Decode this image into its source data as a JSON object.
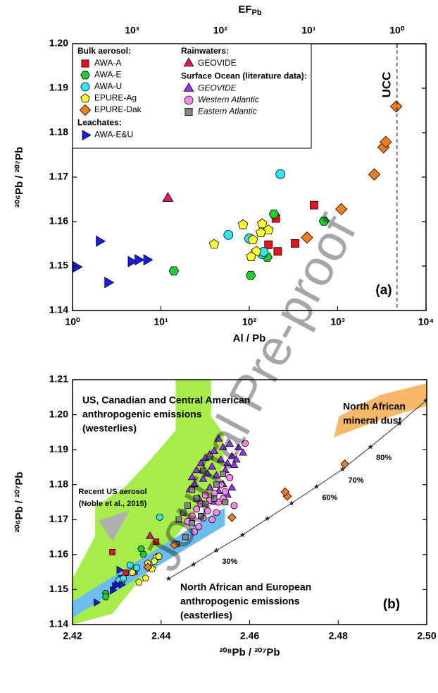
{
  "watermark": "Journal Pre-proof",
  "chart_data": [
    {
      "type": "scatter",
      "xlabel": "Al / Pb",
      "ylabel": "²⁰⁶Pb / ²⁰⁷Pb",
      "x2label": "EF",
      "x2label_subscript": "Pb",
      "xlog": true,
      "xlim": [
        1,
        10000
      ],
      "xticks": [
        {
          "value": 1,
          "label": "10⁰"
        },
        {
          "value": 10,
          "label": "10¹"
        },
        {
          "value": 100,
          "label": "10²"
        },
        {
          "value": 1000,
          "label": "10³"
        },
        {
          "value": 10000,
          "label": "10⁴"
        }
      ],
      "x2lim": [
        4700,
        0.47
      ],
      "x2ticks": [
        {
          "value": 1000,
          "label": "10³"
        },
        {
          "value": 100,
          "label": "10²"
        },
        {
          "value": 10,
          "label": "10¹"
        },
        {
          "value": 1,
          "label": "10⁰"
        }
      ],
      "ylim": [
        1.14,
        1.2
      ],
      "yticks": [
        1.14,
        1.15,
        1.16,
        1.17,
        1.18,
        1.19,
        {
          "value": 1.2,
          "label": "1.20"
        }
      ],
      "reference_line": {
        "x": 4700,
        "label": "UCC"
      },
      "panel_label": "(a)",
      "series_groups": [
        {
          "title": "Bulk aerosol:",
          "series": [
            {
              "name": "AWA-A",
              "color": "#e8141b",
              "marker": "square",
              "x": [
                165,
                200,
                210,
                330,
                540
              ],
              "values": [
                1.1548,
                1.1607,
                1.1533,
                1.1551,
                1.1637
              ]
            },
            {
              "name": "AWA-E",
              "color": "#22cc33",
              "marker": "hexagon",
              "x": [
                14,
                104,
                160,
                190,
                700
              ],
              "values": [
                1.1489,
                1.1479,
                1.152,
                1.1617,
                1.1601
              ]
            },
            {
              "name": "AWA-U",
              "color": "#33e5f0",
              "marker": "circle",
              "x": [
                58,
                100,
                140,
                145,
                225
              ],
              "values": [
                1.157,
                1.1562,
                1.1527,
                1.1532,
                1.1707
              ]
            },
            {
              "name": "EPURE-Ag",
              "color": "#ffff33",
              "marker": "pentagon",
              "x": [
                40,
                85,
                110,
                120,
                105,
                140,
                165,
                135
              ],
              "values": [
                1.1549,
                1.1593,
                1.1559,
                1.1533,
                1.1521,
                1.1595,
                1.1581,
                1.1575
              ]
            },
            {
              "name": "EPURE-Dak",
              "color": "#f07d1e",
              "marker": "diamond",
              "x": [
                450,
                1100,
                2600,
                3300,
                3500,
                4600
              ],
              "values": [
                1.1564,
                1.1628,
                1.1706,
                1.1767,
                1.1779,
                1.1859
              ]
            }
          ]
        },
        {
          "title": "Leachates:",
          "series": [
            {
              "name": "AWA-E&U",
              "color": "#1a1aee",
              "marker": "triangle-right",
              "x": [
                1.1,
                2.0,
                2.5,
                4.6,
                5.5,
                6.9
              ],
              "values": [
                1.1498,
                1.1556,
                1.1463,
                1.151,
                1.1514,
                1.1514
              ]
            }
          ]
        },
        {
          "title": "Rainwaters:",
          "series": [
            {
              "name": "GEOVIDE",
              "color": "#e8146e",
              "marker": "triangle-up",
              "x": [
                12
              ],
              "values": [
                1.1652
              ]
            }
          ]
        },
        {
          "title": "Surface Ocean (literature data):",
          "italic": true,
          "series": [
            {
              "name": "GEOVIDE",
              "color": "#9933ff",
              "marker": "triangle-up",
              "x": [],
              "values": []
            },
            {
              "name": "Western Atlantic",
              "color": "#ff88ee",
              "marker": "circle",
              "x": [],
              "values": []
            },
            {
              "name": "Eastern Atlantic",
              "color": "#888888",
              "marker": "square",
              "x": [],
              "values": []
            }
          ]
        }
      ]
    },
    {
      "type": "scatter",
      "xlabel": "²⁰⁸Pb / ²⁰⁷Pb",
      "ylabel": "²⁰⁶Pb / ²⁰⁷Pb",
      "xlim": [
        2.42,
        2.5
      ],
      "xticks": [
        2.42,
        2.44,
        2.46,
        2.48,
        {
          "value": 2.5,
          "label": "2.50"
        }
      ],
      "ylim": [
        1.14,
        1.21
      ],
      "yticks": [
        1.14,
        1.15,
        1.16,
        1.17,
        1.18,
        1.19,
        {
          "value": 1.2,
          "label": "1.20"
        },
        1.21
      ],
      "panel_label": "(b)",
      "regions": [
        {
          "label": [
            "US, Canadian and Central American",
            "anthropogenic emissions",
            "(westerlies)"
          ],
          "color": "#a6ec4a",
          "x": [
            2.42,
            2.42,
            2.4251,
            2.4251,
            2.4319,
            2.4378,
            2.4433,
            2.4433,
            2.4513,
            2.4513,
            2.4541,
            2.4541,
            2.4513,
            2.4433,
            2.4354,
            2.429,
            2.42
          ],
          "y": [
            1.1431,
            1.1531,
            1.1652,
            1.1737,
            1.1794,
            1.1874,
            1.1955,
            1.21,
            1.21,
            1.1995,
            1.1945,
            1.1854,
            1.1773,
            1.1652,
            1.1531,
            1.1431,
            1.14
          ]
        },
        {
          "label": [
            "North African and European",
            "anthropogenic emissions",
            "(easterlies)"
          ],
          "color": "#6cbcf0",
          "x": [
            2.42,
            2.42,
            2.4513,
            2.4544,
            2.4544,
            2.42
          ],
          "y": [
            1.1425,
            1.1465,
            1.1713,
            1.1733,
            1.1683,
            1.142
          ]
        },
        {
          "label": [
            "North African",
            "mineral dust"
          ],
          "color": "#f6b96a",
          "x": [
            2.479,
            2.4802,
            2.4894,
            2.5,
            2.5,
            2.4894
          ],
          "y": [
            1.1935,
            1.1995,
            1.2056,
            1.209,
            1.2025,
            1.1985
          ]
        },
        {
          "label": [
            "Recent US aerosol",
            "(Noble et al., 2015)"
          ],
          "color": "#b0b0b0",
          "x": [
            2.4259,
            2.433,
            2.429
          ],
          "y": [
            1.1697,
            1.1727,
            1.1638
          ]
        }
      ],
      "mixing_line": {
        "x": [
          2.4417,
          2.4473,
          2.4525,
          2.4584,
          2.464,
          2.4695,
          2.4751,
          2.481,
          2.4873,
          2.4938,
          2.4998
        ],
        "y": [
          1.1531,
          1.1572,
          1.1612,
          1.1656,
          1.1703,
          1.1747,
          1.1794,
          1.1844,
          1.1908,
          1.1975,
          1.204
        ],
        "labels": [
          null,
          null,
          "30%",
          null,
          null,
          null,
          "60%",
          "70%",
          "80%",
          null,
          null
        ]
      },
      "series": [
        {
          "color": "#9933ff",
          "marker": "triangle-up",
          "x": [
            2.453,
            2.4555,
            2.4575,
            2.4585,
            2.454,
            2.456,
            2.457,
            2.452,
            2.451,
            2.4535,
            2.455,
            2.4565,
            2.45,
            2.449,
            2.4515,
            2.4545,
            2.448,
            2.4505,
            2.4525,
            2.447,
            2.4495,
            2.454,
            2.456,
            2.4475,
            2.451,
            2.453,
            2.455,
            2.4465,
            2.4485,
            2.452
          ],
          "values": [
            1.193,
            1.1915,
            1.1905,
            1.189,
            1.1905,
            1.188,
            1.187,
            1.1895,
            1.1885,
            1.187,
            1.186,
            1.1855,
            1.1875,
            1.186,
            1.185,
            1.184,
            1.184,
            1.183,
            1.1825,
            1.182,
            1.1815,
            1.18,
            1.179,
            1.18,
            1.179,
            1.178,
            1.177,
            1.1785,
            1.176,
            1.175
          ]
        },
        {
          "color": "#ff88ee",
          "marker": "circle",
          "x": [
            2.459,
            2.4555,
            2.4535,
            2.4545,
            2.452,
            2.45,
            2.451,
            2.453,
            2.449,
            2.448,
            2.4505,
            2.4525,
            2.447,
            2.4495,
            2.4515,
            2.446,
            2.4485,
            2.454,
            2.4565,
            2.4475
          ],
          "values": [
            1.1918,
            1.182,
            1.18,
            1.178,
            1.1775,
            1.177,
            1.1755,
            1.175,
            1.1745,
            1.173,
            1.1725,
            1.172,
            1.171,
            1.1705,
            1.17,
            1.1695,
            1.168,
            1.176,
            1.174,
            1.1665
          ]
        },
        {
          "color": "#888888",
          "marker": "square",
          "x": [
            2.451,
            2.4495,
            2.454,
            2.4525,
            2.447,
            2.448,
            2.45,
            2.446,
            2.445,
            2.449,
            2.444,
            2.447,
            2.452,
            2.4455,
            2.4435,
            2.4545
          ],
          "values": [
            1.188,
            1.184,
            1.183,
            1.18,
            1.1785,
            1.176,
            1.1745,
            1.174,
            1.172,
            1.171,
            1.17,
            1.169,
            1.176,
            1.165,
            1.163,
            1.175
          ]
        },
        {
          "color": "#e8146e",
          "marker": "triangle-up",
          "x": [
            2.4375
          ],
          "values": [
            1.1652
          ]
        },
        {
          "color": "#e8141b",
          "marker": "square",
          "x": [
            2.432,
            2.429,
            2.431,
            2.434,
            2.4389
          ],
          "values": [
            1.1548,
            1.1607,
            1.1533,
            1.1551,
            1.1637
          ]
        },
        {
          "color": "#22cc33",
          "marker": "hexagon",
          "x": [
            2.4275,
            2.4275,
            2.431,
            2.4355,
            2.436
          ],
          "values": [
            1.1489,
            1.1479,
            1.152,
            1.1617,
            1.1601
          ]
        },
        {
          "color": "#33e5f0",
          "marker": "circle",
          "x": [
            2.433,
            2.4345,
            2.4305,
            2.4315,
            2.4397
          ],
          "values": [
            1.157,
            1.1562,
            1.1527,
            1.1532,
            1.1707
          ]
        },
        {
          "color": "#ffff33",
          "marker": "pentagon",
          "x": [
            2.4335,
            2.439,
            2.438,
            2.4365,
            2.435,
            2.4395,
            2.4385,
            2.437
          ],
          "values": [
            1.1549,
            1.1593,
            1.1559,
            1.1533,
            1.1521,
            1.1595,
            1.1581,
            1.1575
          ]
        },
        {
          "color": "#f07d1e",
          "marker": "diamond",
          "x": [
            2.437,
            2.443,
            2.456,
            2.4685,
            2.468,
            2.4815
          ],
          "values": [
            1.1564,
            1.1628,
            1.1706,
            1.1767,
            1.1779,
            1.1859
          ]
        },
        {
          "color": "#1a1aee",
          "marker": "triangle-right",
          "x": [
            2.429,
            2.4305,
            2.4253,
            2.4295,
            2.43,
            2.431
          ],
          "values": [
            1.1498,
            1.1556,
            1.1463,
            1.151,
            1.1514,
            1.1514
          ]
        }
      ]
    }
  ]
}
